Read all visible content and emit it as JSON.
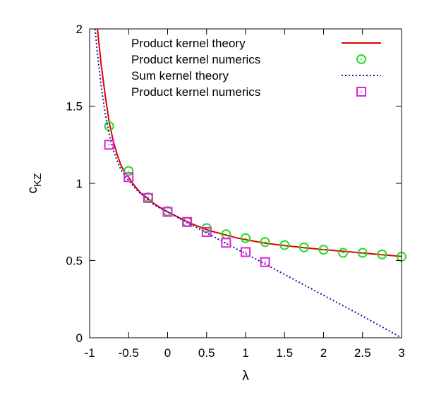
{
  "chart_data": {
    "type": "line",
    "title": "",
    "xlabel": "λ",
    "ylabel_main": "c",
    "ylabel_sub": "KZ",
    "xlim": [
      -1,
      3
    ],
    "ylim": [
      0,
      2
    ],
    "xticks": [
      -1,
      -0.5,
      0,
      0.5,
      1,
      1.5,
      2,
      2.5,
      3
    ],
    "xtick_labels": [
      "-1",
      "-0.5",
      "0",
      "0.5",
      "1",
      "1.5",
      "2",
      "2.5",
      "3"
    ],
    "yticks": [
      0,
      0.5,
      1,
      1.5,
      2
    ],
    "ytick_labels": [
      "0",
      "0.5",
      "1",
      "1.5",
      "2"
    ],
    "legend_position": "top-right",
    "series": [
      {
        "name": "Product kernel theory",
        "style": "line",
        "color": "#e00000",
        "x": [
          -0.9,
          -0.85,
          -0.8,
          -0.75,
          -0.7,
          -0.65,
          -0.6,
          -0.55,
          -0.5,
          -0.45,
          -0.4,
          -0.35,
          -0.3,
          -0.25,
          -0.2,
          -0.15,
          -0.1,
          -0.05,
          0,
          0.1,
          0.2,
          0.3,
          0.4,
          0.5,
          0.6,
          0.75,
          0.9,
          1.0,
          1.25,
          1.5,
          1.75,
          2.0,
          2.25,
          2.5,
          2.75,
          3.0
        ],
        "y": [
          2.0,
          1.76,
          1.57,
          1.4,
          1.28,
          1.19,
          1.12,
          1.07,
          1.04,
          1.0,
          0.97,
          0.94,
          0.92,
          0.9,
          0.88,
          0.86,
          0.845,
          0.83,
          0.815,
          0.79,
          0.765,
          0.74,
          0.72,
          0.7,
          0.685,
          0.665,
          0.645,
          0.635,
          0.613,
          0.597,
          0.583,
          0.571,
          0.56,
          0.549,
          0.538,
          0.527
        ]
      },
      {
        "name": "Product kernel numerics",
        "style": "circle",
        "color": "#22dd22",
        "x": [
          -0.75,
          -0.5,
          -0.25,
          0,
          0.25,
          0.5,
          0.75,
          1.0,
          1.25,
          1.5,
          1.75,
          2.0,
          2.25,
          2.5,
          2.75,
          3.0
        ],
        "y": [
          1.37,
          1.08,
          0.91,
          0.82,
          0.75,
          0.71,
          0.67,
          0.645,
          0.62,
          0.6,
          0.585,
          0.57,
          0.55,
          0.55,
          0.54,
          0.525
        ]
      },
      {
        "name": "Sum kernel theory",
        "style": "dotted",
        "color": "#1010a0",
        "x": [
          -0.93,
          -0.9,
          -0.85,
          -0.8,
          -0.75,
          -0.7,
          -0.65,
          -0.6,
          -0.55,
          -0.5,
          -0.45,
          -0.4,
          -0.35,
          -0.3,
          -0.25,
          -0.2,
          -0.1,
          0,
          0.25,
          0.5,
          0.75,
          1.0,
          1.5,
          2.0,
          2.5,
          3.0
        ],
        "y": [
          2.0,
          1.84,
          1.62,
          1.45,
          1.32,
          1.22,
          1.15,
          1.09,
          1.05,
          1.02,
          0.99,
          0.96,
          0.935,
          0.915,
          0.89,
          0.87,
          0.84,
          0.815,
          0.745,
          0.68,
          0.61,
          0.545,
          0.41,
          0.275,
          0.14,
          0.0
        ]
      },
      {
        "name": "Product kernel numerics",
        "style": "square",
        "color": "#dd22dd",
        "x": [
          -0.75,
          -0.5,
          -0.25,
          0,
          0.25,
          0.5,
          0.75,
          1.0,
          1.25
        ],
        "y": [
          1.25,
          1.04,
          0.905,
          0.815,
          0.75,
          0.685,
          0.615,
          0.555,
          0.49
        ]
      }
    ]
  }
}
